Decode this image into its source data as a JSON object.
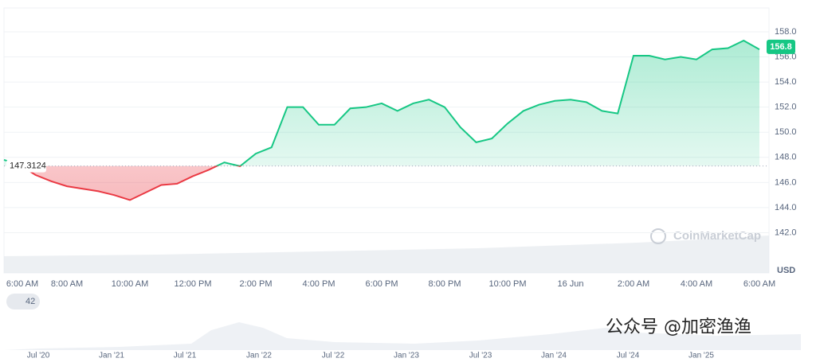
{
  "chart_data": {
    "type": "line",
    "categories": [
      "6:00 AM",
      null,
      null,
      null,
      "8:00 AM",
      null,
      null,
      null,
      "10:00 AM",
      null,
      null,
      null,
      "12:00 PM",
      null,
      null,
      null,
      "2:00 PM",
      null,
      null,
      null,
      "4:00 PM",
      null,
      null,
      null,
      "6:00 PM",
      null,
      null,
      null,
      "8:00 PM",
      null,
      null,
      null,
      "10:00 PM",
      null,
      null,
      null,
      "16 Jun",
      null,
      null,
      null,
      "2:00 AM",
      null,
      null,
      null,
      "4:00 AM",
      null,
      null,
      null,
      "6:00 AM"
    ],
    "values": [
      147.8,
      147.4,
      146.6,
      146.1,
      145.7,
      145.5,
      145.3,
      145.0,
      144.6,
      145.2,
      145.8,
      145.9,
      146.5,
      147.0,
      147.6,
      147.3,
      148.3,
      148.8,
      152.0,
      152.0,
      150.6,
      150.6,
      151.9,
      152.0,
      152.3,
      151.7,
      152.3,
      152.6,
      152.0,
      150.4,
      149.2,
      149.5,
      150.7,
      151.7,
      152.2,
      152.5,
      152.6,
      152.4,
      151.7,
      151.5,
      156.1,
      156.1,
      155.8,
      156.0,
      155.8,
      156.6,
      156.7,
      157.3,
      156.6
    ],
    "baseline": {
      "value": 147.3124,
      "label": "147.3124"
    },
    "current_price": 156.8,
    "up_color": "#16c784",
    "down_color": "#ea3943",
    "ylim": [
      138.8,
      159.9
    ],
    "yticks": [
      {
        "value": 142,
        "label": "142.0"
      },
      {
        "value": 144,
        "label": "144.0"
      },
      {
        "value": 146,
        "label": "146.0"
      },
      {
        "value": 148,
        "label": "148.0"
      },
      {
        "value": 150,
        "label": "150.0"
      },
      {
        "value": 152,
        "label": "152.0"
      },
      {
        "value": 154,
        "label": "154.0"
      },
      {
        "value": 156,
        "label": "156.0"
      },
      {
        "value": 158,
        "label": "158.0"
      }
    ],
    "grid": true,
    "y_unit": "USD",
    "watermark": "CoinMarketCap",
    "badge": "42",
    "navigator_labels": [
      "Jul '20",
      "Jan '21",
      "Jul '21",
      "Jan '22",
      "Jul '22",
      "Jan '23",
      "Jul '23",
      "Jan '24",
      "Jul '24",
      "Jan '25"
    ],
    "overlay_text": "公众号 @加密渔渔"
  }
}
